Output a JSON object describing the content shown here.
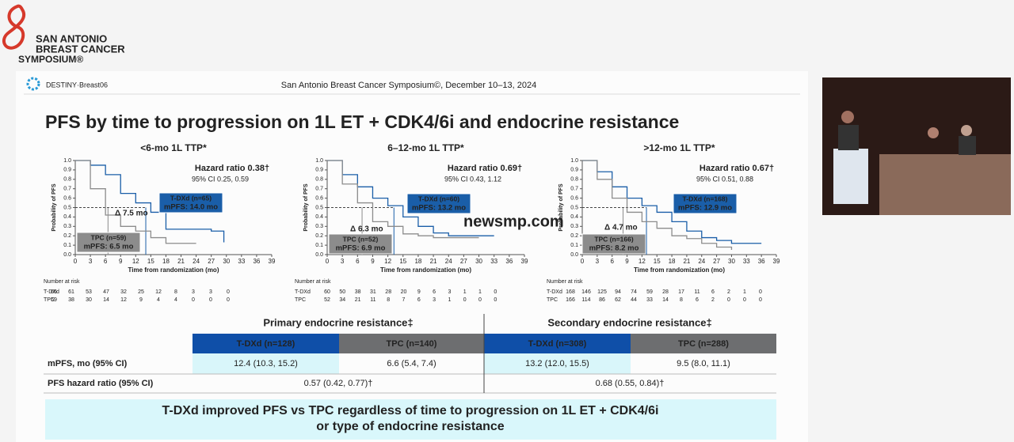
{
  "header": {
    "logo": [
      "SAN ANTONIO",
      "BREAST CANCER",
      "SYMPOSIUM®"
    ],
    "trial": "DESTINY·Breast06",
    "meeting": "San Antonio Breast Cancer Symposium©, December 10–13, 2024"
  },
  "title": "PFS by time to progression on 1L ET + CDK4/6i and endocrine resistance",
  "watermark": "newsmp.com",
  "chart_data": [
    {
      "type": "line",
      "title": "<6-mo 1L TTP*",
      "hazard": "Hazard ratio 0.38†",
      "ci": "95% CI 0.25, 0.59",
      "delta": "Δ 7.5 mo",
      "x_label": "Time from randomization (mo)",
      "y_label": "Probability of PFS",
      "xlim": [
        0,
        39
      ],
      "xticks": [
        0,
        3,
        6,
        9,
        12,
        15,
        18,
        21,
        24,
        27,
        30,
        33,
        36,
        39
      ],
      "ylim": [
        0,
        1
      ],
      "yticks": [
        {
          "value": 0,
          "label": "0.0"
        },
        {
          "value": 0.1,
          "label": "0.1"
        },
        {
          "value": 0.2,
          "label": "0.2"
        },
        {
          "value": 0.3,
          "label": "0.3"
        },
        {
          "value": 0.4,
          "label": "0.4"
        },
        {
          "value": 0.5,
          "label": "0.5"
        },
        {
          "value": 0.6,
          "label": "0.6"
        },
        {
          "value": 0.7,
          "label": "0.7"
        },
        {
          "value": 0.8,
          "label": "0.8"
        },
        {
          "value": 0.9,
          "label": "0.9"
        },
        {
          "value": 1,
          "label": "1.0"
        }
      ],
      "series": [
        {
          "name": "T-DXd (n=65)",
          "median_label": "mPFS: 14.0 mo",
          "median": 14.0,
          "color": "#1a5ea8",
          "x": [
            0,
            3,
            6,
            9,
            12,
            15,
            18,
            21,
            24,
            27,
            29.5
          ],
          "values": [
            1,
            0.95,
            0.85,
            0.65,
            0.55,
            0.45,
            0.27,
            0.27,
            0.27,
            0.25,
            0.13
          ]
        },
        {
          "name": "TPC (n=59)",
          "median_label": "mPFS: 6.5 mo",
          "median": 6.5,
          "color": "#8c8c8c",
          "x": [
            0,
            3,
            6,
            9,
            12,
            15,
            18,
            21,
            24
          ],
          "values": [
            1,
            0.7,
            0.42,
            0.3,
            0.25,
            0.18,
            0.12,
            0.12,
            0.12
          ]
        }
      ],
      "risk_table": {
        "label": "Number at risk",
        "rows": [
          {
            "name": "T-DXd",
            "values": [
              65,
              61,
              53,
              47,
              32,
              25,
              12,
              8,
              3,
              3,
              0
            ]
          },
          {
            "name": "TPC",
            "values": [
              59,
              38,
              30,
              14,
              12,
              9,
              4,
              4,
              0,
              0,
              0
            ]
          }
        ]
      }
    },
    {
      "type": "line",
      "title": "6–12-mo 1L TTP*",
      "hazard": "Hazard ratio 0.69†",
      "ci": "95% CI 0.43, 1.12",
      "delta": "Δ 6.3 mo",
      "x_label": "Time from randomization (mo)",
      "y_label": "Probability of PFS",
      "xlim": [
        0,
        39
      ],
      "xticks": [
        0,
        3,
        6,
        9,
        12,
        15,
        18,
        21,
        24,
        27,
        30,
        33,
        36,
        39
      ],
      "ylim": [
        0,
        1
      ],
      "yticks": [
        {
          "value": 0,
          "label": "0.0"
        },
        {
          "value": 0.1,
          "label": "0.1"
        },
        {
          "value": 0.2,
          "label": "0.2"
        },
        {
          "value": 0.3,
          "label": "0.3"
        },
        {
          "value": 0.4,
          "label": "0.4"
        },
        {
          "value": 0.5,
          "label": "0.5"
        },
        {
          "value": 0.6,
          "label": "0.6"
        },
        {
          "value": 0.7,
          "label": "0.7"
        },
        {
          "value": 0.8,
          "label": "0.8"
        },
        {
          "value": 0.9,
          "label": "0.9"
        },
        {
          "value": 1,
          "label": "1.0"
        }
      ],
      "series": [
        {
          "name": "T-DXd (n=60)",
          "median_label": "mPFS: 13.2 mo",
          "median": 13.2,
          "color": "#1a5ea8",
          "x": [
            0,
            3,
            6,
            9,
            12,
            15,
            18,
            21,
            24,
            27,
            30,
            33
          ],
          "values": [
            1,
            0.85,
            0.72,
            0.6,
            0.52,
            0.4,
            0.3,
            0.23,
            0.2,
            0.2,
            0.2,
            0.2
          ]
        },
        {
          "name": "TPC (n=52)",
          "median_label": "mPFS: 6.9 mo",
          "median": 6.9,
          "color": "#8c8c8c",
          "x": [
            0,
            3,
            6,
            9,
            12,
            15,
            18,
            21,
            24,
            27,
            30
          ],
          "values": [
            1,
            0.75,
            0.55,
            0.35,
            0.3,
            0.22,
            0.2,
            0.18,
            0.18,
            0.18,
            0.18
          ]
        }
      ],
      "risk_table": {
        "label": "Number at risk",
        "rows": [
          {
            "name": "T-DXd",
            "values": [
              60,
              50,
              38,
              31,
              28,
              20,
              9,
              6,
              3,
              1,
              1,
              0
            ]
          },
          {
            "name": "TPC",
            "values": [
              52,
              34,
              21,
              11,
              8,
              7,
              6,
              3,
              1,
              0,
              0,
              0
            ]
          }
        ]
      }
    },
    {
      "type": "line",
      "title": ">12-mo 1L TTP*",
      "hazard": "Hazard ratio 0.67†",
      "ci": "95% CI 0.51, 0.88",
      "delta": "Δ 4.7 mo",
      "x_label": "Time from randomization (mo)",
      "y_label": "Probability of PFS",
      "xlim": [
        0,
        39
      ],
      "xticks": [
        0,
        3,
        6,
        9,
        12,
        15,
        18,
        21,
        24,
        27,
        30,
        33,
        36,
        39
      ],
      "ylim": [
        0,
        1
      ],
      "yticks": [
        {
          "value": 0,
          "label": "0.0"
        },
        {
          "value": 0.1,
          "label": "0.1"
        },
        {
          "value": 0.2,
          "label": "0.2"
        },
        {
          "value": 0.3,
          "label": "0.3"
        },
        {
          "value": 0.4,
          "label": "0.4"
        },
        {
          "value": 0.5,
          "label": "0.5"
        },
        {
          "value": 0.6,
          "label": "0.6"
        },
        {
          "value": 0.7,
          "label": "0.7"
        },
        {
          "value": 0.8,
          "label": "0.8"
        },
        {
          "value": 0.9,
          "label": "0.9"
        },
        {
          "value": 1,
          "label": "1.0"
        }
      ],
      "series": [
        {
          "name": "T-DXd (n=168)",
          "median_label": "mPFS: 12.9 mo",
          "median": 12.9,
          "color": "#1a5ea8",
          "x": [
            0,
            3,
            6,
            9,
            12,
            15,
            18,
            21,
            24,
            27,
            30,
            33,
            36
          ],
          "values": [
            1,
            0.88,
            0.72,
            0.6,
            0.52,
            0.45,
            0.35,
            0.25,
            0.18,
            0.15,
            0.12,
            0.12,
            0.12
          ]
        },
        {
          "name": "TPC (n=166)",
          "median_label": "mPFS: 8.2 mo",
          "median": 8.2,
          "color": "#8c8c8c",
          "x": [
            0,
            3,
            6,
            9,
            12,
            15,
            18,
            21,
            24,
            27,
            30
          ],
          "values": [
            1,
            0.8,
            0.6,
            0.45,
            0.35,
            0.28,
            0.2,
            0.17,
            0.12,
            0.08,
            0.05
          ]
        }
      ],
      "risk_table": {
        "label": "Number at risk",
        "rows": [
          {
            "name": "T-DXd",
            "values": [
              168,
              146,
              125,
              94,
              74,
              59,
              28,
              17,
              11,
              6,
              2,
              1,
              0
            ]
          },
          {
            "name": "TPC",
            "values": [
              166,
              114,
              86,
              62,
              44,
              33,
              14,
              8,
              6,
              2,
              0,
              0,
              0
            ]
          }
        ]
      }
    }
  ],
  "table": {
    "groups": [
      "Primary endocrine resistance‡",
      "Secondary endocrine resistance‡"
    ],
    "columns": [
      "T-DXd (n=128)",
      "TPC (n=140)",
      "T-DXd (n=308)",
      "TPC (n=288)"
    ],
    "rows": [
      [
        "mPFS, mo (95% CI)",
        "12.4 (10.3, 15.2)",
        "6.6 (5.4, 7.4)",
        "13.2 (12.0, 15.5)",
        "9.5 (8.0, 11.1)"
      ],
      [
        "PFS hazard ratio (95% CI)",
        "0.57 (0.42, 0.77)†",
        "0.68 (0.55, 0.84)†"
      ]
    ]
  },
  "conclusion": [
    "T-DXd improved PFS vs TPC regardless of time to progression on 1L ET + CDK4/6i",
    "or type of endocrine resistance"
  ]
}
